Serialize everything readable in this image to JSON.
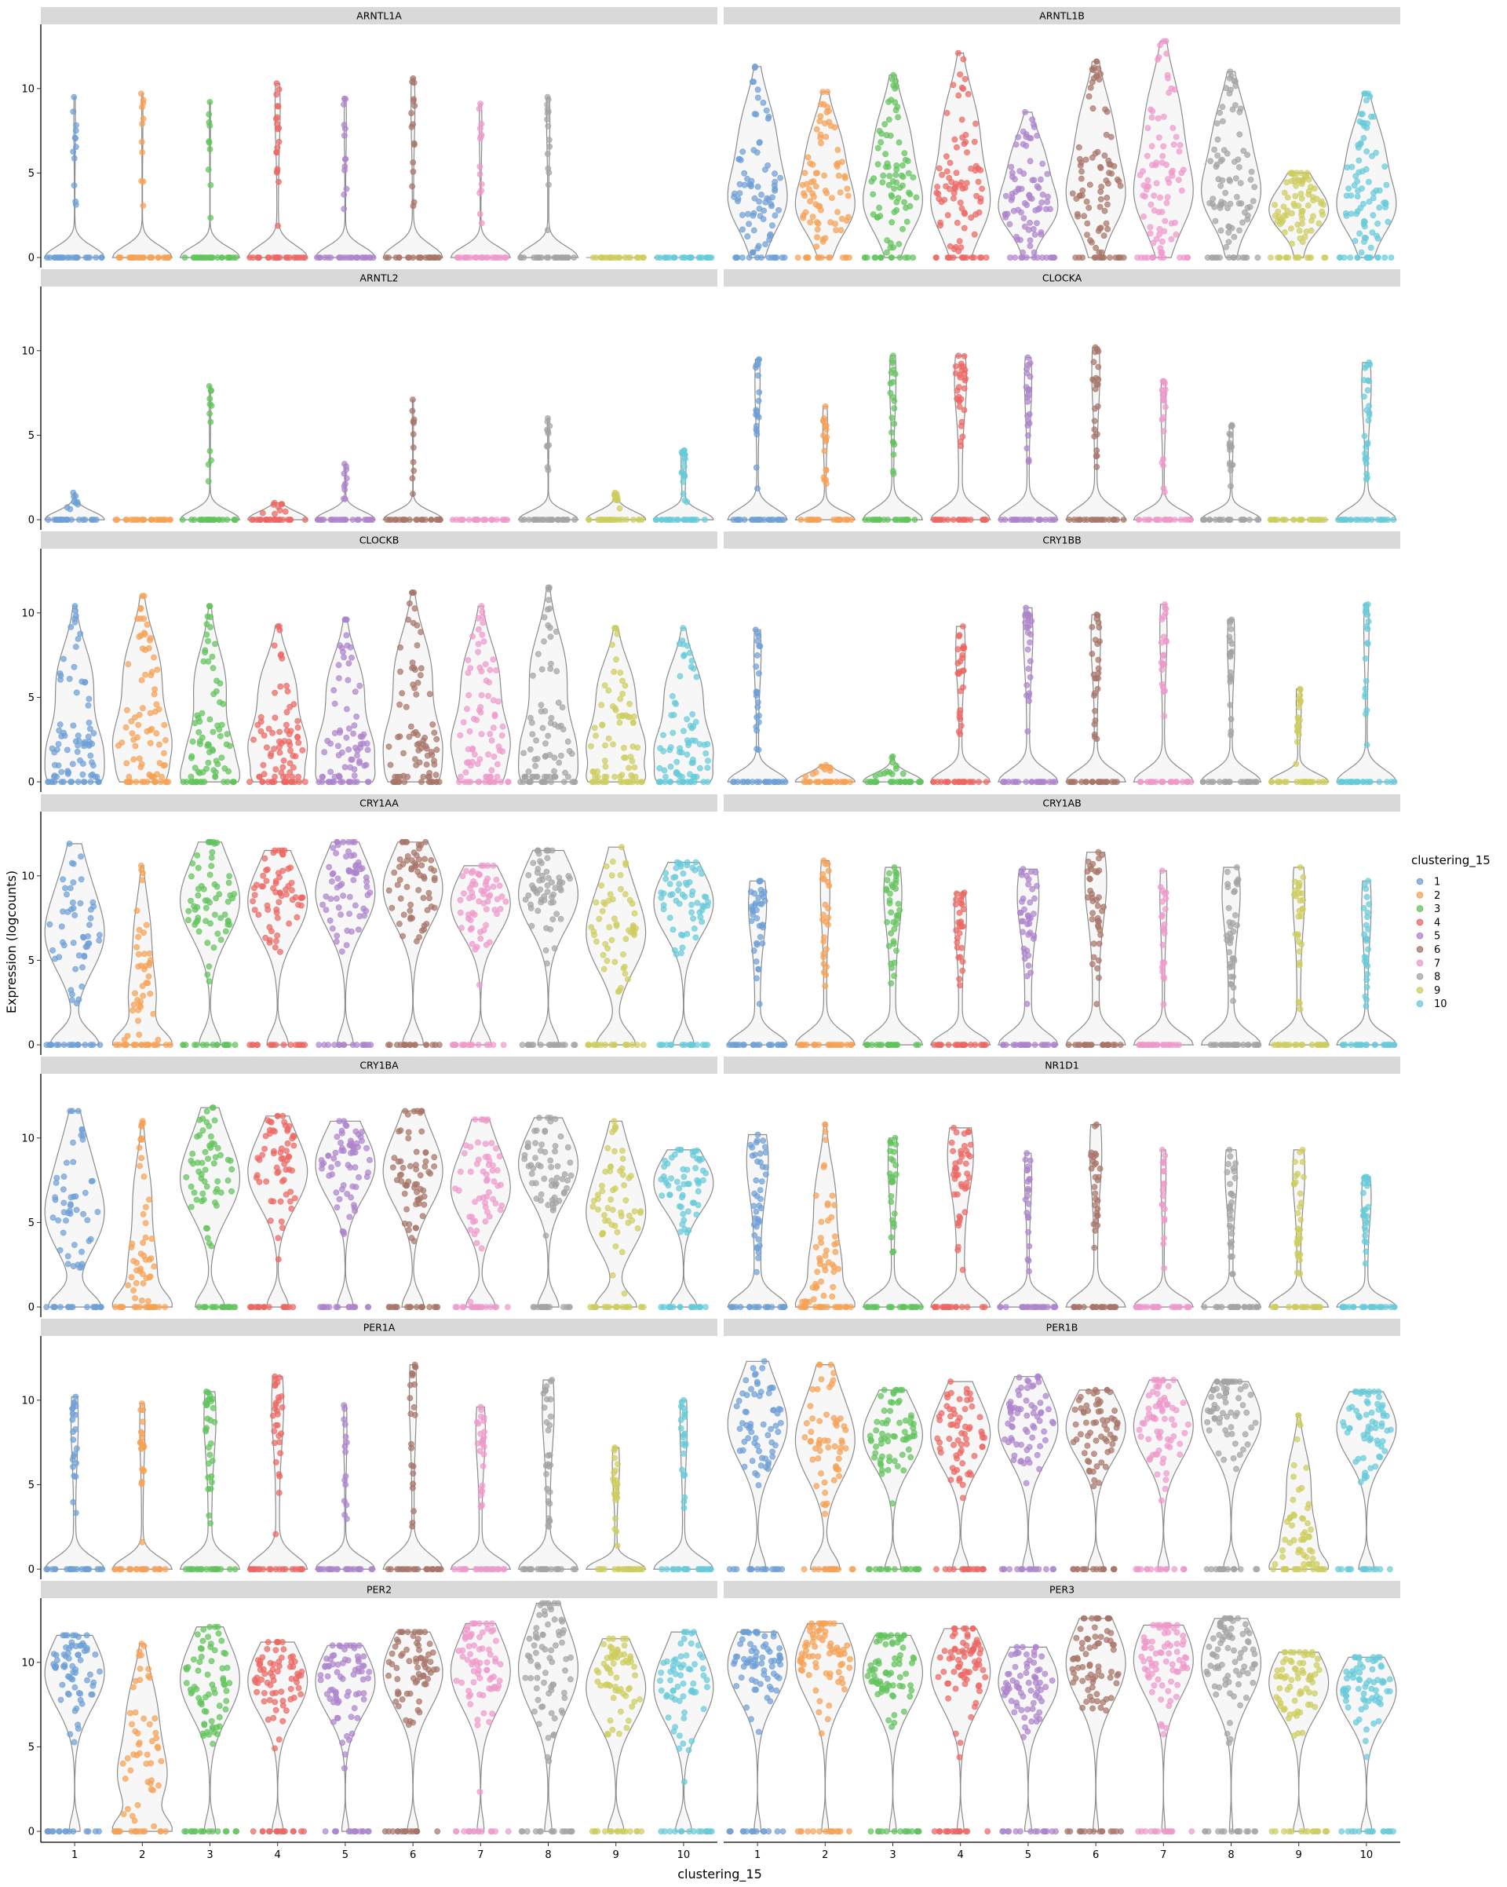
{
  "chart_data": {
    "type": "violin",
    "xlabel": "clustering_15",
    "ylabel": "Expression (logcounts)",
    "categories": [
      "1",
      "2",
      "3",
      "4",
      "5",
      "6",
      "7",
      "8",
      "9",
      "10"
    ],
    "y_ticks": [
      0,
      5,
      10
    ],
    "ylim": [
      -0.6,
      13.8
    ],
    "legend": {
      "title": "clustering_15",
      "placement": "right",
      "entries": [
        "1",
        "2",
        "3",
        "4",
        "5",
        "6",
        "7",
        "8",
        "9",
        "10"
      ]
    },
    "colors": [
      "#6d9fd6",
      "#f6a154",
      "#61c35c",
      "#ec6663",
      "#ad84cc",
      "#a77468",
      "#ee98cb",
      "#a3a3a3",
      "#cdcd5e",
      "#67cbd9"
    ],
    "panels": [
      {
        "gene": "ARNTL1A",
        "max": [
          9.5,
          9.7,
          9.2,
          10.3,
          9.4,
          10.6,
          9.1,
          9.5,
          0,
          0
        ],
        "median": [
          0,
          0,
          0,
          0,
          0,
          0,
          0,
          0,
          0,
          0
        ],
        "zero_frac": [
          0.95,
          0.96,
          0.97,
          0.85,
          0.93,
          0.88,
          0.92,
          0.9,
          1,
          1
        ]
      },
      {
        "gene": "ARNTL1B",
        "max": [
          11.3,
          9.8,
          10.8,
          12.1,
          8.6,
          11.6,
          12.8,
          11.0,
          5.0,
          9.7
        ],
        "median": [
          3.2,
          2.8,
          3.0,
          3.0,
          2.7,
          3.4,
          3.5,
          3.5,
          2.5,
          2.8
        ],
        "zero_frac": [
          0.04,
          0.04,
          0.04,
          0.05,
          0.04,
          0.05,
          0.03,
          0.04,
          0.06,
          0.05
        ]
      },
      {
        "gene": "ARNTL2",
        "max": [
          1.6,
          0,
          7.9,
          1.0,
          3.3,
          7.1,
          0,
          6.0,
          1.6,
          4.1
        ],
        "median": [
          0,
          0,
          0,
          0,
          0,
          0,
          0,
          0,
          0,
          0
        ],
        "zero_frac": [
          0.99,
          1,
          0.95,
          0.99,
          0.97,
          0.96,
          1,
          0.96,
          0.95,
          0.85
        ]
      },
      {
        "gene": "CLOCKA",
        "max": [
          9.5,
          6.7,
          9.7,
          9.7,
          9.6,
          10.2,
          8.2,
          5.6,
          0,
          9.3
        ],
        "median": [
          0,
          0,
          0,
          0,
          0,
          0,
          0,
          0,
          0,
          0
        ],
        "zero_frac": [
          0.85,
          0.86,
          0.82,
          0.7,
          0.8,
          0.78,
          0.85,
          0.88,
          1,
          0.75
        ]
      },
      {
        "gene": "CLOCKB",
        "max": [
          10.4,
          11.0,
          10.4,
          9.2,
          9.6,
          11.2,
          10.4,
          11.5,
          9.1,
          9.1
        ],
        "median": [
          1.5,
          2.0,
          1.2,
          1.8,
          1.6,
          1.8,
          2.0,
          1.6,
          1.8,
          1.6
        ],
        "zero_frac": [
          0.15,
          0.15,
          0.2,
          0.2,
          0.2,
          0.15,
          0.15,
          0.15,
          0.25,
          0.2
        ]
      },
      {
        "gene": "CRY1BB",
        "max": [
          9.0,
          1.0,
          1.5,
          9.2,
          10.3,
          9.9,
          10.5,
          9.6,
          5.5,
          10.5
        ],
        "median": [
          0,
          0,
          0,
          0,
          0,
          0,
          0,
          0,
          0,
          0
        ],
        "zero_frac": [
          0.8,
          0.97,
          0.95,
          0.75,
          0.75,
          0.75,
          0.8,
          0.8,
          0.85,
          0.85
        ]
      },
      {
        "gene": "CRY1AA",
        "max": [
          11.9,
          10.6,
          12.0,
          11.5,
          12.0,
          12.0,
          10.6,
          11.5,
          11.7,
          10.8
        ],
        "median": [
          6.0,
          2.5,
          8.0,
          8.0,
          8.5,
          8.8,
          8.0,
          8.5,
          6.0,
          8.0
        ],
        "zero_frac": [
          0.4,
          0.55,
          0.25,
          0.25,
          0.2,
          0.25,
          0.25,
          0.25,
          0.35,
          0.25
        ]
      },
      {
        "gene": "CRY1AB",
        "max": [
          9.7,
          10.9,
          10.5,
          9.0,
          10.4,
          11.4,
          10.3,
          10.5,
          10.5,
          9.7
        ],
        "median": [
          0,
          0,
          0,
          0,
          0,
          0,
          0,
          0,
          0,
          0
        ],
        "zero_frac": [
          0.6,
          0.75,
          0.6,
          0.7,
          0.55,
          0.55,
          0.8,
          0.6,
          0.7,
          0.75
        ]
      },
      {
        "gene": "CRY1BA",
        "max": [
          11.6,
          11.0,
          11.8,
          11.3,
          11.0,
          11.6,
          11.1,
          11.2,
          11.0,
          9.3
        ],
        "median": [
          5.0,
          2.0,
          7.0,
          7.5,
          8.0,
          7.5,
          6.5,
          8.0,
          5.0,
          7.0
        ],
        "zero_frac": [
          0.4,
          0.5,
          0.3,
          0.25,
          0.2,
          0.25,
          0.3,
          0.25,
          0.35,
          0.3
        ]
      },
      {
        "gene": "NR1D1",
        "max": [
          10.2,
          10.8,
          10.0,
          10.6,
          9.1,
          10.8,
          9.3,
          9.3,
          9.3,
          7.7
        ],
        "median": [
          0,
          2.0,
          0,
          0,
          0,
          0,
          0,
          0,
          0,
          0
        ],
        "zero_frac": [
          0.55,
          0.45,
          0.75,
          0.5,
          0.8,
          0.7,
          0.85,
          0.7,
          0.7,
          0.75
        ]
      },
      {
        "gene": "PER1A",
        "max": [
          10.2,
          9.8,
          10.5,
          11.4,
          9.7,
          12.1,
          9.6,
          11.2,
          7.2,
          10.0
        ],
        "median": [
          0,
          0,
          0,
          0,
          0,
          0,
          0,
          0,
          0,
          0
        ],
        "zero_frac": [
          0.8,
          0.85,
          0.7,
          0.7,
          0.9,
          0.8,
          0.75,
          0.7,
          0.8,
          0.8
        ]
      },
      {
        "gene": "PER1B",
        "max": [
          12.3,
          12.1,
          10.6,
          11.1,
          11.4,
          10.6,
          11.2,
          11.1,
          9.1,
          10.5
        ],
        "median": [
          8.0,
          7.0,
          7.5,
          7.5,
          8.0,
          8.0,
          8.0,
          8.5,
          1.5,
          8.0
        ],
        "zero_frac": [
          0.2,
          0.3,
          0.2,
          0.2,
          0.15,
          0.2,
          0.15,
          0.2,
          0.4,
          0.2
        ]
      },
      {
        "gene": "PER2",
        "max": [
          11.6,
          11.1,
          12.1,
          11.2,
          11.0,
          11.8,
          12.3,
          13.5,
          11.4,
          11.8
        ],
        "median": [
          9.0,
          3.0,
          8.5,
          8.5,
          8.5,
          9.0,
          9.0,
          9.0,
          8.0,
          8.0
        ],
        "zero_frac": [
          0.15,
          0.4,
          0.15,
          0.15,
          0.1,
          0.15,
          0.1,
          0.1,
          0.2,
          0.2
        ]
      },
      {
        "gene": "PER3",
        "max": [
          11.8,
          12.3,
          11.6,
          12.0,
          10.9,
          12.6,
          12.2,
          12.6,
          10.6,
          10.3
        ],
        "median": [
          9.5,
          9.5,
          9.0,
          9.0,
          8.5,
          9.5,
          9.8,
          9.5,
          8.5,
          8.0
        ],
        "zero_frac": [
          0.1,
          0.1,
          0.1,
          0.1,
          0.1,
          0.08,
          0.05,
          0.05,
          0.15,
          0.15
        ]
      }
    ]
  }
}
